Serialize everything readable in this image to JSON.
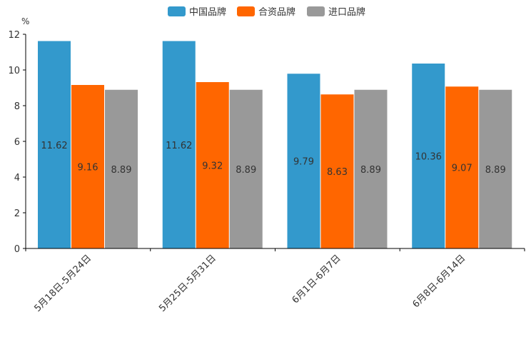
{
  "chart_data": {
    "type": "bar",
    "title": "",
    "xlabel": "",
    "ylabel": "%",
    "ylim": [
      0,
      12
    ],
    "yticks": [
      0,
      2,
      4,
      6,
      8,
      10,
      12
    ],
    "legend_position": "top-center",
    "grid": false,
    "categories": [
      "5月18日-5月24日",
      "5月25日-5月31日",
      "6月1日-6月7日",
      "6月8日-6月14日"
    ],
    "series": [
      {
        "name": "中国品牌",
        "color": "#3399CC",
        "values": [
          11.62,
          11.62,
          9.79,
          10.36
        ],
        "labels": [
          "11.62",
          "11.62",
          "9.79",
          "10.36"
        ]
      },
      {
        "name": "合资品牌",
        "color": "#FF6600",
        "values": [
          9.16,
          9.32,
          8.63,
          9.07
        ],
        "labels": [
          "9.16",
          "9.32",
          "8.63",
          "9.07"
        ]
      },
      {
        "name": "进口品牌",
        "color": "#999999",
        "values": [
          8.89,
          8.89,
          8.89,
          8.89
        ],
        "labels": [
          "8.89",
          "8.89",
          "8.89",
          "8.89"
        ]
      }
    ]
  }
}
